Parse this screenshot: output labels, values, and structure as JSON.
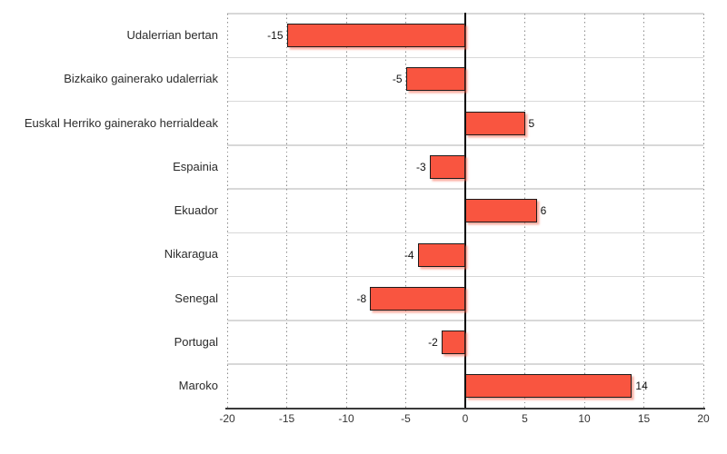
{
  "chart_data": {
    "type": "bar",
    "orientation": "horizontal",
    "title": "",
    "xlabel": "",
    "ylabel": "",
    "categories": [
      "Udalerrian bertan",
      "Bizkaiko gainerako udalerriak",
      "Euskal Herriko gainerako herrialdeak",
      "Espainia",
      "Ekuador",
      "Nikaragua",
      "Senegal",
      "Portugal",
      "Maroko"
    ],
    "values": [
      -15,
      -5,
      5,
      -3,
      6,
      -4,
      -8,
      -2,
      14
    ],
    "value_labels": [
      "-15",
      "-5",
      "5",
      "-3",
      "6",
      "-4",
      "-8",
      "-2",
      "14"
    ],
    "xlim": [
      -20,
      20
    ],
    "x_ticks": [
      -20,
      -15,
      -10,
      -5,
      0,
      5,
      10,
      15,
      20
    ],
    "x_tick_labels": [
      "-20",
      "-15",
      "-10",
      "-5",
      "0",
      "5",
      "10",
      "15",
      "20"
    ],
    "grid": "dotted-vertical-every-5",
    "legend": "none",
    "colors": {
      "bar_fill": "#f95540",
      "bar_border": "#1b1b1b",
      "bar_shadow": "#f96e58",
      "zero_line": "#000000",
      "axis_line": "#3a3a3a",
      "row_separator": "#d8d8d8",
      "gridline": "#8a8a8a",
      "label_text": "#2b2b2b",
      "tick_text": "#333333",
      "background": "#ffffff"
    }
  }
}
